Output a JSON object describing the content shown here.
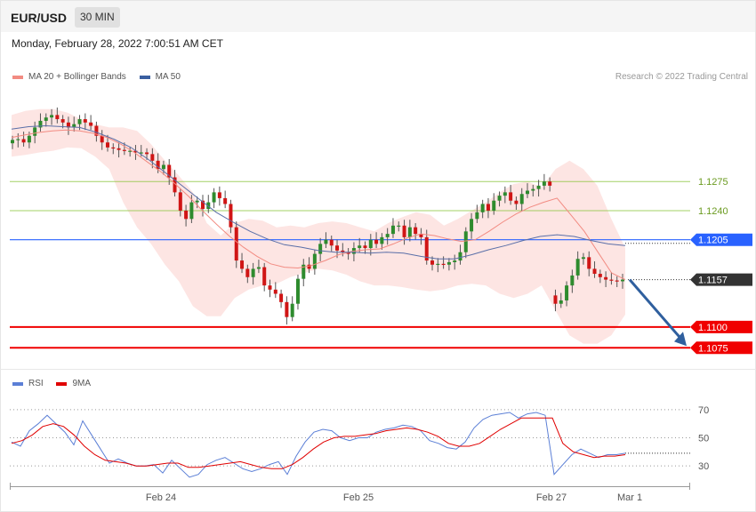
{
  "header": {
    "pair": "EUR/USD",
    "timeframe": "30 MIN"
  },
  "datetime": "Monday, February 28, 2022 7:00:51 AM CET",
  "legend_main": [
    {
      "label": "MA 20 + Bollinger Bands",
      "color": "#f28b82"
    },
    {
      "label": "MA 50",
      "color": "#3a5fa0"
    }
  ],
  "legend_rsi": [
    {
      "label": "RSI",
      "color": "#5b7fd6"
    },
    {
      "label": "9MA",
      "color": "#e00000"
    }
  ],
  "credit": "Research © 2022 Trading Central",
  "chart_data": [
    {
      "type": "line",
      "title": "",
      "x_ticks": [
        "Feb 24",
        "Feb 25",
        "Feb 27",
        "Mar 1"
      ],
      "ylim": [
        1.1055,
        1.138
      ],
      "levels": [
        {
          "label": "1.1275",
          "value": 1.1275,
          "kind": "target",
          "color": "#8cc63f"
        },
        {
          "label": "1.1240",
          "value": 1.124,
          "kind": "target",
          "color": "#8cc63f"
        },
        {
          "label": "1.1205",
          "value": 1.1205,
          "kind": "pivot",
          "color": "#2962ff"
        },
        {
          "label": "1.1157",
          "value": 1.1157,
          "kind": "last",
          "color": "#333333"
        },
        {
          "label": "1.1100",
          "value": 1.11,
          "kind": "support",
          "color": "#f00000"
        },
        {
          "label": "1.1075",
          "value": 1.1075,
          "kind": "support",
          "color": "#f00000"
        }
      ],
      "projection": {
        "from": 1.1157,
        "to": 1.1075
      },
      "series": [
        {
          "name": "Price",
          "values": [
            1.1325,
            1.1326,
            1.1322,
            1.133,
            1.134,
            1.1348,
            1.1352,
            1.1355,
            1.135,
            1.1346,
            1.134,
            1.1344,
            1.135,
            1.1346,
            1.1342,
            1.133,
            1.1322,
            1.1316,
            1.1315,
            1.1313,
            1.1312,
            1.1312,
            1.131,
            1.131,
            1.1308,
            1.13,
            1.129,
            1.1295,
            1.128,
            1.1262,
            1.124,
            1.123,
            1.125,
            1.1252,
            1.1242,
            1.125,
            1.1262,
            1.1255,
            1.1248,
            1.122,
            1.118,
            1.117,
            1.116,
            1.117,
            1.1172,
            1.115,
            1.1145,
            1.114,
            1.113,
            1.1112,
            1.1128,
            1.1158,
            1.1175,
            1.117,
            1.1188,
            1.12,
            1.1205,
            1.1198,
            1.1192,
            1.119,
            1.1188,
            1.1195,
            1.1198,
            1.1195,
            1.1205,
            1.12,
            1.1208,
            1.1212,
            1.1222,
            1.1222,
            1.1208,
            1.122,
            1.1212,
            1.1208,
            1.118,
            1.1175,
            1.1176,
            1.1175,
            1.1178,
            1.118,
            1.119,
            1.1215,
            1.123,
            1.1238,
            1.1248,
            1.124,
            1.1252,
            1.1258,
            1.1262,
            1.1252,
            1.1248,
            1.126,
            1.1264,
            1.1266,
            1.127,
            1.1275,
            1.127,
            1.1128,
            1.1132,
            1.115,
            1.1162,
            1.1182,
            1.1184,
            1.117,
            1.1164,
            1.116,
            1.1157,
            1.1156,
            1.1155,
            1.1157
          ]
        },
        {
          "name": "MA 20",
          "values": [
            1.1328,
            1.1331,
            1.1334,
            1.1336,
            1.1337,
            1.1336,
            1.1333,
            1.1328,
            1.132,
            1.131,
            1.1298,
            1.1286,
            1.1272,
            1.1257,
            1.124,
            1.1224,
            1.1209,
            1.1196,
            1.1185,
            1.1176,
            1.1172,
            1.1171,
            1.1174,
            1.118,
            1.1187,
            1.1191,
            1.1193,
            1.1194,
            1.12,
            1.1207,
            1.1212,
            1.121,
            1.1206,
            1.1203,
            1.1205,
            1.1215,
            1.1226,
            1.1236,
            1.1244,
            1.125,
            1.1255,
            1.1235,
            1.1215,
            1.119,
            1.1165,
            1.1157
          ]
        },
        {
          "name": "BB Upper",
          "values": [
            1.1355,
            1.136,
            1.1362,
            1.1362,
            1.1358,
            1.135,
            1.1344,
            1.134,
            1.134,
            1.1336,
            1.132,
            1.13,
            1.1282,
            1.1262,
            1.1225,
            1.121,
            1.1225,
            1.123,
            1.1228,
            1.122,
            1.1222,
            1.122,
            1.1225,
            1.1227,
            1.1225,
            1.122,
            1.1215,
            1.1225,
            1.1232,
            1.1238,
            1.1235,
            1.1222,
            1.123,
            1.124,
            1.125,
            1.1262,
            1.1272,
            1.1275,
            1.1268,
            1.129,
            1.13,
            1.129,
            1.127,
            1.123,
            1.1195
          ]
        },
        {
          "name": "BB Lower",
          "values": [
            1.1305,
            1.1307,
            1.131,
            1.1312,
            1.1316,
            1.1315,
            1.1305,
            1.129,
            1.125,
            1.122,
            1.12,
            1.1175,
            1.1155,
            1.1125,
            1.1113,
            1.1113,
            1.1135,
            1.1145,
            1.115,
            1.1152,
            1.116,
            1.1165,
            1.117,
            1.1168,
            1.1163,
            1.1155,
            1.115,
            1.115,
            1.1148,
            1.1145,
            1.1143,
            1.1145,
            1.115,
            1.1152,
            1.115,
            1.114,
            1.1135,
            1.114,
            1.115,
            1.112,
            1.109,
            1.108,
            1.108,
            1.109,
            1.1115
          ]
        },
        {
          "name": "MA 50",
          "values": [
            1.1338,
            1.1341,
            1.1342,
            1.1341,
            1.134,
            1.1334,
            1.1326,
            1.1316,
            1.1302,
            1.1286,
            1.127,
            1.1254,
            1.1238,
            1.1226,
            1.1215,
            1.1206,
            1.1199,
            1.1196,
            1.1192,
            1.119,
            1.119,
            1.1189,
            1.119,
            1.1189,
            1.1185,
            1.1182,
            1.1182,
            1.1187,
            1.1193,
            1.1198,
            1.1204,
            1.1209,
            1.1211,
            1.1209,
            1.1204,
            1.12,
            1.1198
          ]
        }
      ]
    },
    {
      "type": "line",
      "title": "",
      "yticks": [
        "70",
        "50",
        "30"
      ],
      "ylim": [
        20,
        80
      ],
      "x_ticks": [
        "Feb 24",
        "Feb 25",
        "Feb 27",
        "Mar 1"
      ],
      "series": [
        {
          "name": "RSI",
          "values": [
            47,
            44,
            55,
            60,
            66,
            60,
            54,
            45,
            62,
            52,
            42,
            32,
            35,
            32,
            30,
            30,
            31,
            25,
            34,
            28,
            22,
            24,
            31,
            34,
            36,
            32,
            28,
            26,
            28,
            31,
            33,
            24,
            37,
            47,
            54,
            56,
            55,
            50,
            48,
            50,
            50,
            54,
            56,
            57,
            59,
            58,
            55,
            48,
            46,
            43,
            42,
            47,
            57,
            63,
            66,
            67,
            68,
            64,
            67,
            68,
            66,
            24,
            31,
            38,
            42,
            39,
            36,
            38,
            38,
            39
          ]
        },
        {
          "name": "9MA",
          "values": [
            46,
            48,
            52,
            58,
            60,
            58,
            52,
            44,
            38,
            34,
            33,
            32,
            30,
            30,
            31,
            32,
            32,
            29,
            29,
            30,
            31,
            32,
            33,
            31,
            29,
            28,
            28,
            31,
            36,
            42,
            47,
            50,
            51,
            51,
            52,
            53,
            55,
            56,
            57,
            56,
            54,
            51,
            46,
            44,
            44,
            46,
            51,
            56,
            60,
            64,
            64,
            64,
            64,
            46,
            40,
            38,
            36,
            37,
            37,
            38
          ]
        }
      ]
    }
  ]
}
